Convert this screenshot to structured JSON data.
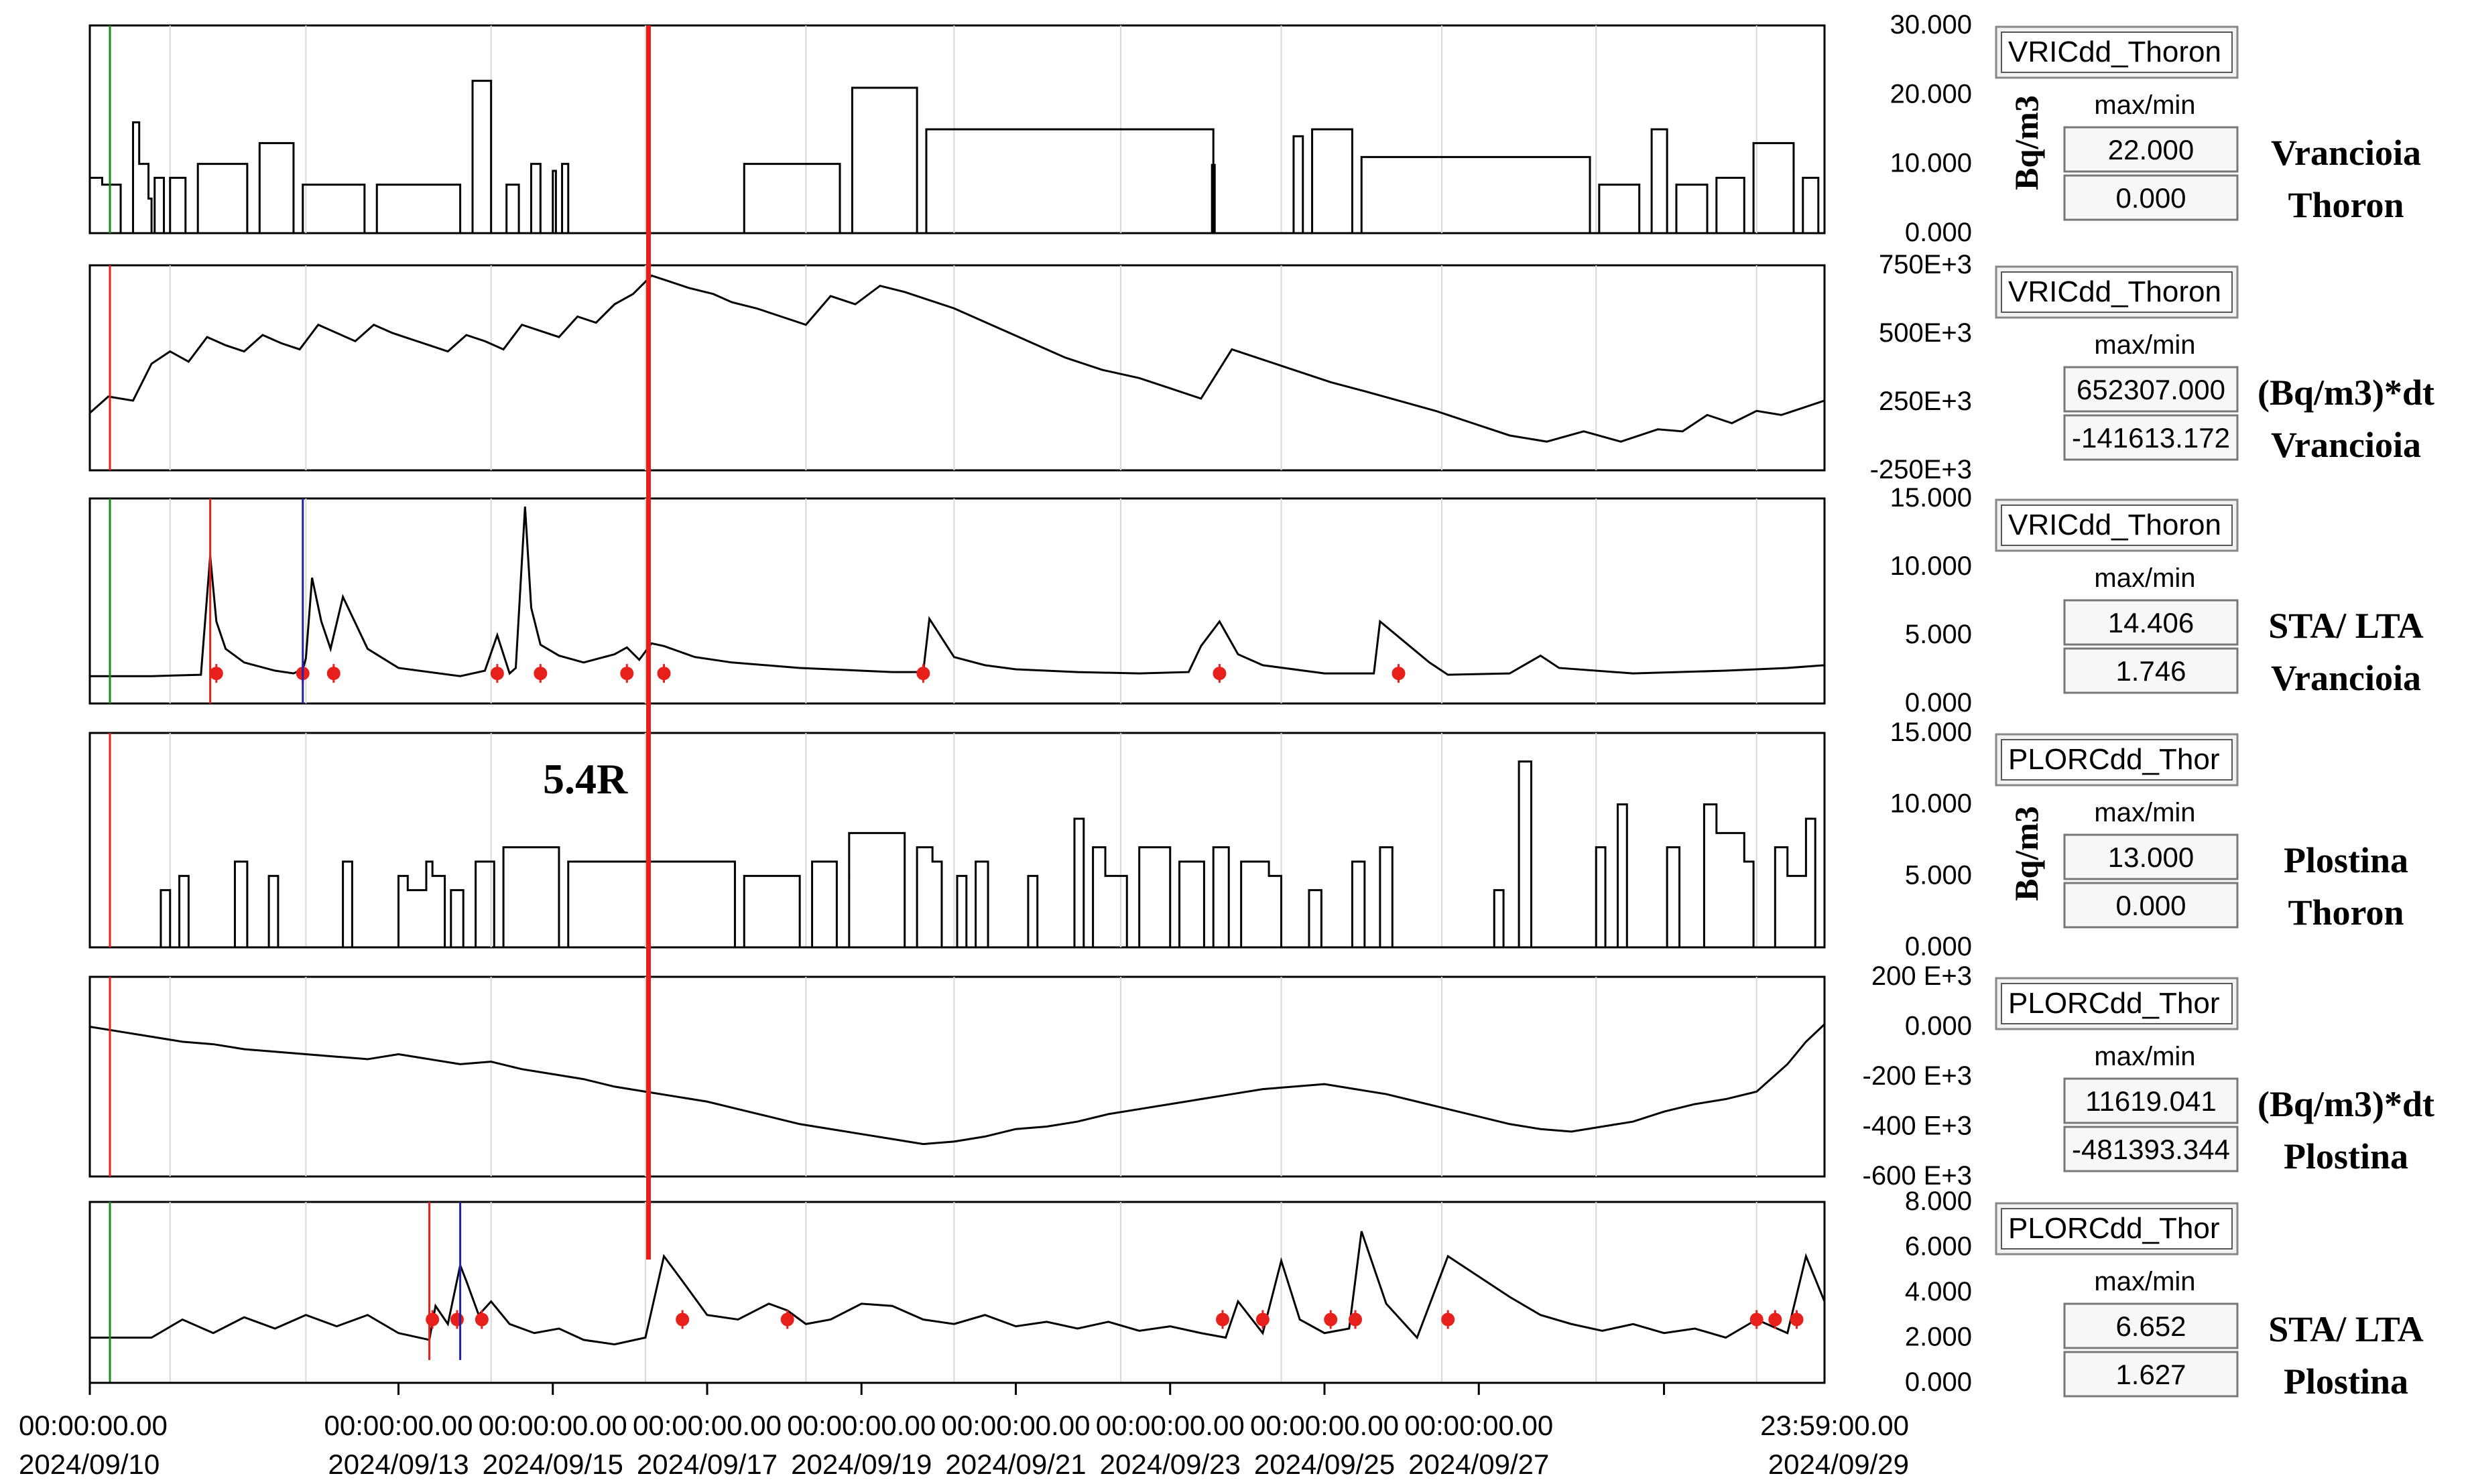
{
  "chart_data": [
    {
      "type": "line",
      "station": "Vrancioia",
      "series_label": "VRICdd_Thoron",
      "unit": "Bq/m3",
      "ylim": [
        0,
        30
      ],
      "yticks": [
        "30.000",
        "20.000",
        "10.000",
        "0.000"
      ],
      "max_label": "22.000",
      "min_label": "0.000",
      "caption": [
        "Vrancioia",
        "Thoron"
      ],
      "step_x": [
        0,
        0.2,
        0.5,
        0.7,
        0.8,
        0.95,
        1.0,
        1.05,
        1.2,
        1.3,
        1.55,
        1.75,
        2.55,
        2.75,
        3.3,
        3.45,
        4.45,
        4.65,
        6.0,
        6.2,
        6.5,
        6.75,
        6.95,
        7.15,
        7.3,
        7.5,
        7.55,
        7.65,
        7.75,
        8.15,
        10.45,
        10.6,
        12.15,
        12.35,
        13.4,
        13.55,
        18.2,
        18.25,
        19.35,
        19.5,
        19.65,
        19.8,
        20.45,
        20.6,
        24.3,
        24.45,
        25.1,
        25.3,
        25.55,
        25.7,
        26.2,
        26.35,
        26.8,
        26.95,
        27.6,
        27.75,
        28.0,
        28.1
      ],
      "step_y": [
        8,
        7,
        0,
        16,
        10,
        5,
        0,
        8,
        0,
        8,
        0,
        10,
        0,
        13,
        0,
        7,
        0,
        7,
        0,
        22,
        0,
        7,
        0,
        10,
        0,
        9,
        0,
        10,
        0,
        0,
        0,
        10,
        0,
        21,
        0,
        15,
        0,
        0,
        0,
        14,
        0,
        15,
        0,
        11,
        0,
        7,
        0,
        15,
        0,
        7,
        0,
        8,
        0,
        13,
        0,
        8,
        0,
        14
      ],
      "spike_x": [
        18.2
      ],
      "spike_y": [
        10
      ]
    },
    {
      "type": "line",
      "station": "Vrancioia",
      "series_label": "VRICdd_Thoron",
      "unit": "(Bq/m3)*dt",
      "ylim": [
        -250000,
        750000
      ],
      "yticks": [
        "750E+3",
        "500E+3",
        "250E+3",
        "-250E+3"
      ],
      "max_label": "652307.000",
      "min_label": "-141613.172",
      "caption": [
        "(Bq/m3)*dt",
        "Vrancioia"
      ],
      "x": [
        0,
        0.3,
        0.7,
        1.0,
        1.3,
        1.6,
        1.9,
        2.2,
        2.5,
        2.8,
        3.1,
        3.4,
        3.7,
        4.0,
        4.3,
        4.6,
        4.9,
        5.2,
        5.5,
        5.8,
        6.1,
        6.4,
        6.7,
        7.0,
        7.3,
        7.6,
        7.9,
        8.2,
        8.5,
        8.8,
        9.1,
        9.4,
        9.7,
        10.1,
        10.4,
        10.8,
        11.2,
        11.6,
        12.0,
        12.4,
        12.8,
        13.2,
        13.6,
        14.0,
        14.6,
        15.2,
        15.8,
        16.4,
        17.0,
        17.5,
        18.0,
        18.5,
        18.9,
        19.3,
        19.7,
        20.1,
        20.6,
        21.2,
        21.8,
        22.4,
        23.0,
        23.6,
        24.2,
        24.8,
        25.4,
        25.8,
        26.2,
        26.6,
        27.0,
        27.4,
        27.8,
        28.1
      ],
      "y": [
        30000,
        110000,
        90000,
        270000,
        330000,
        280000,
        400000,
        360000,
        330000,
        410000,
        370000,
        340000,
        460000,
        420000,
        380000,
        460000,
        420000,
        390000,
        360000,
        330000,
        410000,
        380000,
        340000,
        460000,
        430000,
        400000,
        500000,
        470000,
        560000,
        610000,
        700000,
        670000,
        640000,
        610000,
        570000,
        540000,
        500000,
        460000,
        600000,
        560000,
        650000,
        620000,
        580000,
        540000,
        460000,
        380000,
        300000,
        240000,
        200000,
        150000,
        100000,
        340000,
        300000,
        260000,
        220000,
        180000,
        140000,
        90000,
        40000,
        -20000,
        -80000,
        -110000,
        -60000,
        -110000,
        -50000,
        -60000,
        20000,
        -20000,
        40000,
        20000,
        60000,
        90000
      ]
    },
    {
      "type": "line",
      "station": "Vrancioia",
      "series_label": "VRICdd_Thoron",
      "unit": "STA/LTA",
      "ylim": [
        0,
        15
      ],
      "yticks": [
        "15.000",
        "10.000",
        "5.000",
        "0.000"
      ],
      "max_label": "14.406",
      "min_label": "1.746",
      "caption": [
        "STA/ LTA",
        "Vrancioia"
      ],
      "x": [
        0,
        1.0,
        1.8,
        1.95,
        2.05,
        2.2,
        2.5,
        3.0,
        3.3,
        3.45,
        3.5,
        3.6,
        3.75,
        3.9,
        4.1,
        4.5,
        5.0,
        6.0,
        6.4,
        6.6,
        6.8,
        6.9,
        7.05,
        7.15,
        7.3,
        7.6,
        8.0,
        8.5,
        8.7,
        8.9,
        9.1,
        9.3,
        9.8,
        10.4,
        11.5,
        13.0,
        13.5,
        13.6,
        14.0,
        14.5,
        15.0,
        16.0,
        17.0,
        17.8,
        18.0,
        18.3,
        18.6,
        19.0,
        20.0,
        20.8,
        20.9,
        21.3,
        21.7,
        22.0,
        23.0,
        23.5,
        23.8,
        25.0,
        26.5,
        27.5,
        28.1
      ],
      "y": [
        2.0,
        2.0,
        2.1,
        10.8,
        6.0,
        4.0,
        3.0,
        2.4,
        2.2,
        2.5,
        3.3,
        9.2,
        6.0,
        4.0,
        7.8,
        4.0,
        2.6,
        2.0,
        2.4,
        5.0,
        2.2,
        2.6,
        14.4,
        7.0,
        4.3,
        3.5,
        3.0,
        3.6,
        4.1,
        3.2,
        4.4,
        4.2,
        3.4,
        3.0,
        2.6,
        2.3,
        2.3,
        6.2,
        3.4,
        2.8,
        2.5,
        2.3,
        2.2,
        2.3,
        4.2,
        6.0,
        3.6,
        2.8,
        2.2,
        2.2,
        6.0,
        4.5,
        3.0,
        2.1,
        2.2,
        3.5,
        2.6,
        2.2,
        2.4,
        2.6,
        2.8
      ],
      "markers_x": [
        2.05,
        3.45,
        3.95,
        6.6,
        7.3,
        8.7,
        9.3,
        13.5,
        18.3,
        21.2
      ]
    },
    {
      "type": "line",
      "station": "Plostina",
      "series_label": "PLORCdd_Thor",
      "unit": "Bq/m3",
      "ylim": [
        0,
        15
      ],
      "yticks": [
        "15.000",
        "10.000",
        "5.000",
        "0.000"
      ],
      "max_label": "13.000",
      "min_label": "0.000",
      "caption": [
        "Plostina",
        "Thoron"
      ],
      "annotation": "5.4R",
      "step_x": [
        0,
        1.15,
        1.3,
        1.45,
        1.6,
        2.35,
        2.55,
        2.9,
        3.05,
        4.1,
        4.25,
        5.0,
        5.15,
        5.45,
        5.55,
        5.75,
        5.85,
        6.05,
        6.25,
        6.55,
        6.7,
        7.6,
        7.75,
        10.45,
        10.6,
        11.5,
        11.7,
        12.1,
        12.3,
        13.2,
        13.4,
        13.65,
        13.8,
        14.05,
        14.2,
        14.35,
        14.55,
        15.2,
        15.35,
        15.95,
        16.1,
        16.25,
        16.45,
        16.8,
        17.0,
        17.5,
        17.65,
        18.05,
        18.2,
        18.45,
        18.65,
        19.1,
        19.3,
        19.75,
        19.95,
        20.45,
        20.65,
        20.9,
        21.1,
        22.75,
        22.9,
        23.15,
        23.35,
        24.4,
        24.55,
        24.75,
        24.9,
        25.55,
        25.75,
        26.15,
        26.35,
        26.8,
        26.95,
        27.3,
        27.5,
        27.8,
        27.95
      ],
      "step_y": [
        0,
        4,
        0,
        5,
        0,
        6,
        0,
        5,
        0,
        6,
        0,
        5,
        4,
        6,
        5,
        0,
        4,
        0,
        6,
        0,
        7,
        0,
        6,
        0,
        5,
        0,
        6,
        0,
        8,
        0,
        7,
        6,
        0,
        5,
        0,
        6,
        0,
        5,
        0,
        9,
        0,
        7,
        5,
        0,
        7,
        0,
        6,
        0,
        7,
        0,
        6,
        5,
        0,
        4,
        0,
        6,
        0,
        7,
        0,
        4,
        0,
        13,
        0,
        7,
        0,
        10,
        0,
        7,
        0,
        10,
        8,
        6,
        0,
        7,
        5,
        9,
        0
      ],
      "spike_x": [
        5.4,
        9.05
      ],
      "spike_y": [
        0,
        0
      ]
    },
    {
      "type": "line",
      "station": "Plostina",
      "series_label": "PLORCdd_Thor",
      "unit": "(Bq/m3)*dt",
      "ylim": [
        -600000,
        200000
      ],
      "yticks": [
        "200 E+3",
        "0.000",
        "-200 E+3",
        "-400 E+3",
        "-600 E+3"
      ],
      "max_label": "11619.041",
      "min_label": "-481393.344",
      "caption": [
        "(Bq/m3)*dt",
        "Plostina"
      ],
      "x": [
        0,
        0.5,
        1.0,
        1.5,
        2.0,
        2.5,
        3.0,
        3.5,
        4.0,
        4.5,
        5.0,
        5.5,
        6.0,
        6.5,
        7.0,
        7.5,
        8.0,
        8.5,
        9.0,
        9.5,
        10.0,
        10.5,
        11.0,
        11.5,
        12.0,
        12.5,
        13.0,
        13.5,
        14.0,
        14.5,
        15.0,
        15.5,
        16.0,
        16.5,
        17.0,
        17.5,
        18.0,
        18.5,
        19.0,
        19.5,
        20.0,
        20.5,
        21.0,
        21.5,
        22.0,
        22.5,
        23.0,
        23.5,
        24.0,
        24.5,
        25.0,
        25.5,
        26.0,
        26.5,
        27.0,
        27.5,
        27.8,
        28.1
      ],
      "y": [
        0,
        -20000,
        -40000,
        -60000,
        -70000,
        -90000,
        -100000,
        -110000,
        -120000,
        -130000,
        -110000,
        -130000,
        -150000,
        -140000,
        -170000,
        -190000,
        -210000,
        -240000,
        -260000,
        -280000,
        -300000,
        -330000,
        -360000,
        -390000,
        -410000,
        -430000,
        -450000,
        -470000,
        -460000,
        -440000,
        -410000,
        -400000,
        -380000,
        -350000,
        -330000,
        -310000,
        -290000,
        -270000,
        -250000,
        -240000,
        -230000,
        -250000,
        -270000,
        -300000,
        -330000,
        -360000,
        -390000,
        -410000,
        -420000,
        -400000,
        -380000,
        -340000,
        -310000,
        -290000,
        -260000,
        -150000,
        -60000,
        10000
      ]
    },
    {
      "type": "line",
      "station": "Plostina",
      "series_label": "PLORCdd_Thor",
      "unit": "STA/LTA",
      "ylim": [
        0,
        8
      ],
      "yticks": [
        "8.000",
        "6.000",
        "4.000",
        "2.000",
        "0.000"
      ],
      "max_label": "6.652",
      "min_label": "1.627",
      "caption": [
        "STA/ LTA",
        "Plostina"
      ],
      "x": [
        0,
        1.0,
        1.5,
        2.0,
        2.5,
        3.0,
        3.5,
        4.0,
        4.5,
        5.0,
        5.5,
        5.6,
        5.8,
        6.0,
        6.1,
        6.3,
        6.5,
        6.8,
        7.2,
        7.6,
        8.0,
        8.5,
        9.0,
        9.3,
        9.6,
        10.0,
        10.5,
        11.0,
        11.3,
        11.6,
        12.0,
        12.5,
        13.0,
        13.5,
        14.0,
        14.5,
        15.0,
        15.5,
        16.0,
        16.5,
        17.0,
        17.5,
        18.0,
        18.4,
        18.6,
        19.0,
        19.3,
        19.6,
        20.0,
        20.4,
        20.6,
        21.0,
        21.5,
        22.0,
        23.0,
        23.5,
        24.0,
        24.5,
        25.0,
        25.5,
        26.0,
        26.5,
        27.0,
        27.5,
        27.8,
        28.1
      ],
      "y": [
        2.0,
        2.0,
        2.8,
        2.2,
        2.9,
        2.4,
        3.0,
        2.5,
        3.0,
        2.2,
        1.9,
        3.4,
        2.6,
        5.2,
        4.5,
        3.0,
        3.6,
        2.6,
        2.2,
        2.4,
        1.9,
        1.7,
        2.0,
        5.6,
        4.5,
        3.0,
        2.8,
        3.5,
        3.2,
        2.6,
        2.8,
        3.5,
        3.4,
        2.8,
        2.6,
        3.0,
        2.5,
        2.7,
        2.4,
        2.7,
        2.3,
        2.5,
        2.2,
        2.0,
        3.6,
        2.2,
        5.4,
        2.8,
        2.2,
        2.4,
        6.7,
        3.5,
        2.0,
        5.6,
        3.8,
        3.0,
        2.6,
        2.3,
        2.6,
        2.2,
        2.4,
        2.0,
        2.8,
        2.2,
        5.6,
        3.6
      ],
      "markers_x": [
        5.55,
        5.95,
        6.35,
        9.6,
        11.3,
        18.35,
        19.0,
        20.1,
        20.5,
        22.0,
        27.0,
        27.3,
        27.65
      ]
    }
  ],
  "x_axis": {
    "ticks": [
      {
        "time": "00:00:00.00",
        "date": "2024/09/10"
      },
      {
        "time": "00:00:00.00",
        "date": "2024/09/13"
      },
      {
        "time": "00:00:00.00",
        "date": "2024/09/15"
      },
      {
        "time": "00:00:00.00",
        "date": "2024/09/17"
      },
      {
        "time": "00:00:00.00",
        "date": "2024/09/19"
      },
      {
        "time": "00:00:00.00",
        "date": "2024/09/21"
      },
      {
        "time": "00:00:00.00",
        "date": "2024/09/23"
      },
      {
        "time": "00:00:00.00",
        "date": "2024/09/25"
      },
      {
        "time": "00:00:00.00",
        "date": "2024/09/27"
      },
      {
        "time": "23:59:00.00",
        "date": "2024/09/29"
      }
    ]
  },
  "side_labels": {
    "max_min": "max/min",
    "bq_unit_vertical": "Bq/m3"
  },
  "colors": {
    "trace": "#000000",
    "event_line": "#e8201c",
    "blue_marker": "#2222aa",
    "green_marker": "#1a8a1a",
    "grid": "#d8d8d8",
    "frame": "#000000"
  }
}
